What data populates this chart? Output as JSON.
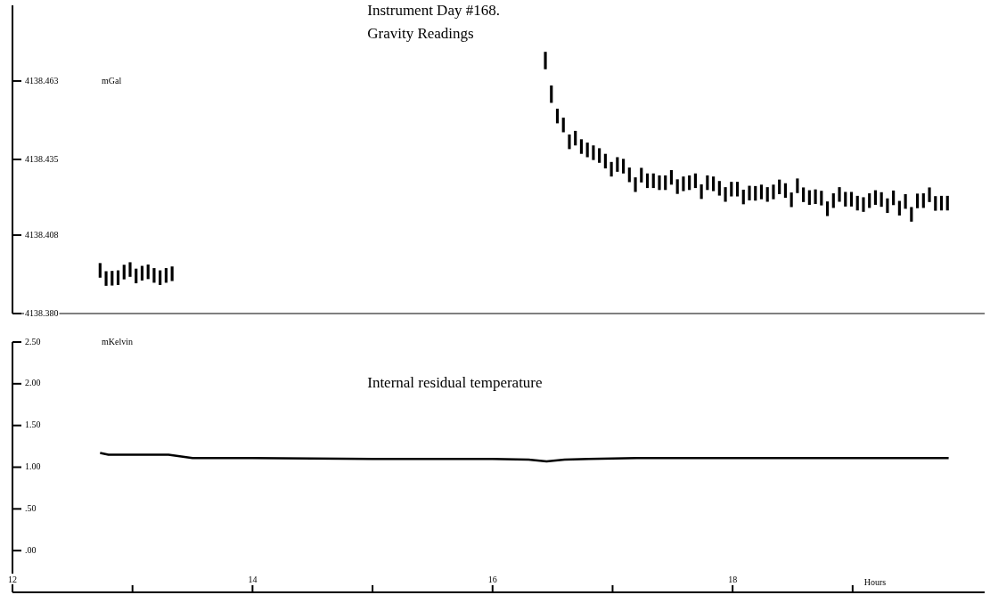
{
  "chart_data": [
    {
      "type": "bar",
      "title": "Instrument Day #168.",
      "subtitle": "Gravity Readings",
      "ylabel": "mGal",
      "tick_labels": "y",
      "xlim": [
        12,
        20.1
      ],
      "ylim": [
        4138.38,
        4138.49
      ],
      "yticks": [
        4138.463,
        4138.435,
        4138.408,
        {
          "value": 4138.38,
          "label": "4138.380"
        }
      ],
      "series": [
        {
          "color": "#000000",
          "x": [
            12.73,
            12.78,
            12.83,
            12.88,
            12.93,
            12.98,
            13.03,
            13.08,
            13.13,
            13.18,
            13.23,
            13.28,
            13.33,
            16.44,
            16.49,
            16.54,
            16.59,
            16.64,
            16.69,
            16.74,
            16.79,
            16.84,
            16.89,
            16.94,
            16.99,
            17.04,
            17.09,
            17.14,
            17.19,
            17.24,
            17.29,
            17.34,
            17.39,
            17.44,
            17.49,
            17.54,
            17.59,
            17.64,
            17.69,
            17.74,
            17.79,
            17.84,
            17.89,
            17.94,
            17.99,
            18.04,
            18.09,
            18.14,
            18.19,
            18.24,
            18.29,
            18.34,
            18.39,
            18.44,
            18.49,
            18.54,
            18.59,
            18.64,
            18.69,
            18.74,
            18.79,
            18.84,
            18.89,
            18.94,
            18.99,
            19.04,
            19.09,
            19.14,
            19.19,
            19.24,
            19.29,
            19.34,
            19.39,
            19.44,
            19.49,
            19.54,
            19.59,
            19.64,
            19.69,
            19.74,
            19.79
          ],
          "base": [
            4138.3929,
            4138.39,
            4138.3901,
            4138.3903,
            4138.3923,
            4138.3932,
            4138.3909,
            4138.3919,
            4138.3924,
            4138.3911,
            4138.3903,
            4138.3911,
            4138.3917,
            4138.4673,
            4138.4553,
            4138.448,
            4138.4448,
            4138.4388,
            4138.4401,
            4138.4371,
            4138.4359,
            4138.4349,
            4138.4339,
            4138.4319,
            4138.429,
            4138.4307,
            4138.4301,
            4138.427,
            4138.4235,
            4138.4269,
            4138.4249,
            4138.4249,
            4138.4242,
            4138.4242,
            4138.4261,
            4138.4228,
            4138.4238,
            4138.4242,
            4138.4249,
            4138.421,
            4138.4242,
            4138.4238,
            4138.4222,
            4138.42,
            4138.4219,
            4138.4219,
            4138.4191,
            4138.4205,
            4138.4204,
            4138.4209,
            4138.42,
            4138.4209,
            4138.4227,
            4138.4214,
            4138.4181,
            4138.4231,
            4138.4199,
            4138.4189,
            4138.4192,
            4138.4187,
            4138.4149,
            4138.4178,
            4138.42,
            4138.4183,
            4138.4183,
            4138.4169,
            4138.4164,
            4138.4178,
            4138.4189,
            4138.4182,
            4138.416,
            4138.4188,
            4138.4151,
            4138.4175,
            4138.4129,
            4138.4177,
            4138.4178,
            4138.4199,
            4138.4168,
            4138.4169,
            4138.4169
          ],
          "values": [
            0.005,
            0.005,
            0.005,
            0.005,
            0.005,
            0.005,
            0.005,
            0.005,
            0.005,
            0.005,
            0.005,
            0.005,
            0.005,
            0.006,
            0.006,
            0.005,
            0.005,
            0.005,
            0.005,
            0.005,
            0.005,
            0.005,
            0.005,
            0.005,
            0.005,
            0.005,
            0.005,
            0.005,
            0.005,
            0.005,
            0.005,
            0.005,
            0.005,
            0.005,
            0.005,
            0.005,
            0.005,
            0.005,
            0.005,
            0.005,
            0.005,
            0.005,
            0.005,
            0.005,
            0.005,
            0.005,
            0.005,
            0.005,
            0.005,
            0.005,
            0.005,
            0.005,
            0.005,
            0.005,
            0.005,
            0.005,
            0.005,
            0.005,
            0.005,
            0.005,
            0.005,
            0.005,
            0.005,
            0.005,
            0.005,
            0.005,
            0.005,
            0.005,
            0.005,
            0.005,
            0.005,
            0.005,
            0.005,
            0.005,
            0.005,
            0.005,
            0.005,
            0.005,
            0.005,
            0.005,
            0.005
          ]
        }
      ]
    },
    {
      "type": "line",
      "title": "Internal residual temperature",
      "ylabel": "mKelvin",
      "xlabel": "Hours",
      "xlim": [
        12,
        20.1
      ],
      "ylim": [
        -0.5,
        2.5
      ],
      "xticks": [
        12,
        {
          "value": 13,
          "label": null
        },
        14,
        {
          "value": 15,
          "label": null
        },
        16,
        {
          "value": 17,
          "label": null
        },
        18,
        {
          "value": 19,
          "label": null
        }
      ],
      "yticks": [
        {
          "value": 2.5,
          "label": "2.50"
        },
        {
          "value": 2,
          "label": "2.00"
        },
        {
          "value": 1.5,
          "label": "1.50"
        },
        {
          "value": 1,
          "label": "1.00"
        },
        {
          "value": 0.5,
          "label": ".50"
        },
        {
          "value": 0,
          "label": ".00"
        }
      ],
      "series": [
        {
          "color": "#000000",
          "x": [
            12.73,
            12.8,
            12.9,
            13.3,
            13.5,
            14,
            15,
            16,
            16.3,
            16.45,
            16.6,
            16.8,
            17.2,
            18,
            19,
            19.5,
            19.8
          ],
          "values": [
            1.17,
            1.15,
            1.15,
            1.15,
            1.11,
            1.11,
            1.1,
            1.1,
            1.09,
            1.07,
            1.09,
            1.1,
            1.11,
            1.11,
            1.11,
            1.11,
            1.11
          ]
        }
      ]
    }
  ]
}
